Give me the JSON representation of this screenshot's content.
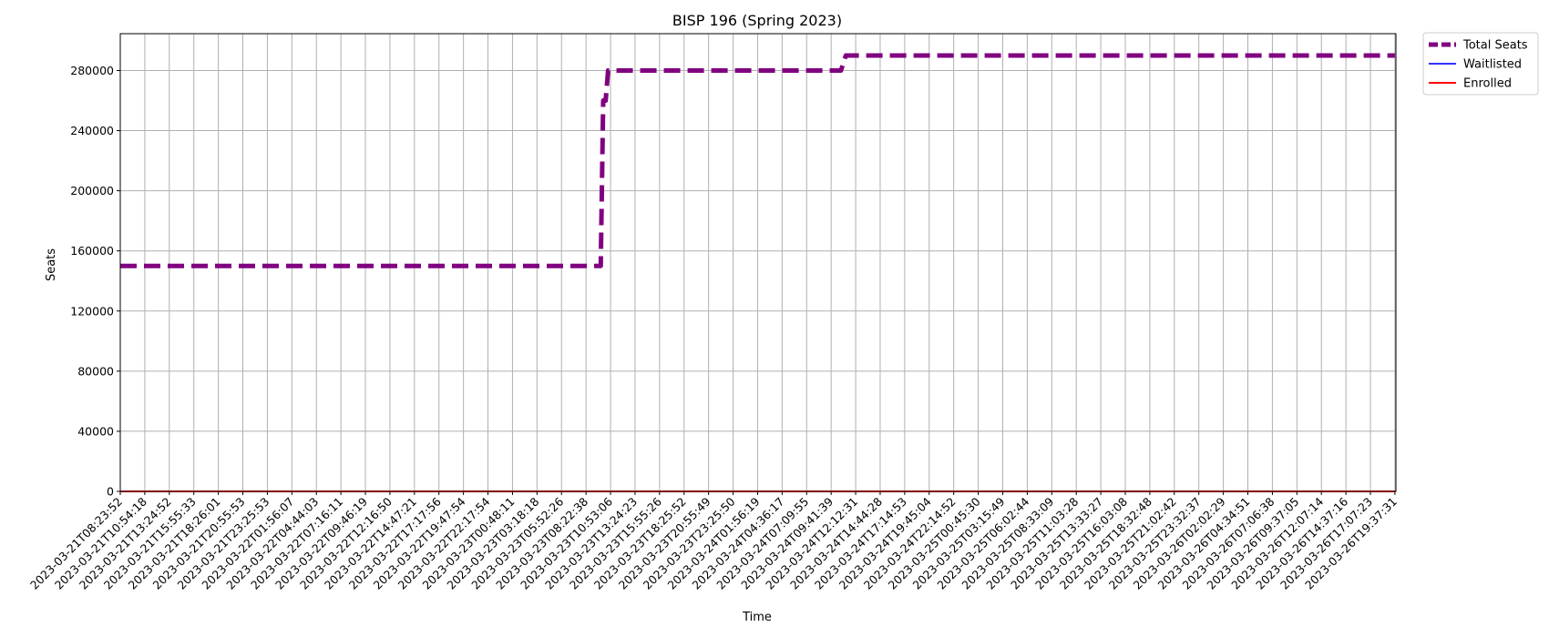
{
  "chart_data": {
    "type": "line",
    "title": "BISP 196 (Spring 2023)",
    "xlabel": "Time",
    "ylabel": "Seats",
    "ylim": [
      0,
      304500
    ],
    "yticks": [
      0,
      40000,
      80000,
      120000,
      160000,
      200000,
      240000,
      280000
    ],
    "grid": true,
    "legend_position": "outside-top-right",
    "x_tick_labels": [
      "2023-03-21T08:23:52",
      "2023-03-21T10:54:18",
      "2023-03-21T13:24:52",
      "2023-03-21T15:55:33",
      "2023-03-21T18:26:01",
      "2023-03-21T20:55:53",
      "2023-03-21T23:25:53",
      "2023-03-22T01:56:07",
      "2023-03-22T04:44:03",
      "2023-03-22T07:16:11",
      "2023-03-22T09:46:19",
      "2023-03-22T12:16:50",
      "2023-03-22T14:47:21",
      "2023-03-22T17:17:56",
      "2023-03-22T19:47:54",
      "2023-03-22T22:17:54",
      "2023-03-23T00:48:11",
      "2023-03-23T03:18:18",
      "2023-03-23T05:52:26",
      "2023-03-23T08:22:38",
      "2023-03-23T10:53:06",
      "2023-03-23T13:24:23",
      "2023-03-23T15:55:26",
      "2023-03-23T18:25:52",
      "2023-03-23T20:55:49",
      "2023-03-23T23:25:50",
      "2023-03-24T01:56:19",
      "2023-03-24T04:36:17",
      "2023-03-24T07:09:55",
      "2023-03-24T09:41:39",
      "2023-03-24T12:12:31",
      "2023-03-24T14:44:28",
      "2023-03-24T17:14:53",
      "2023-03-24T19:45:04",
      "2023-03-24T22:14:52",
      "2023-03-25T00:45:30",
      "2023-03-25T03:15:49",
      "2023-03-25T06:02:44",
      "2023-03-25T08:33:09",
      "2023-03-25T11:03:28",
      "2023-03-25T13:33:27",
      "2023-03-25T16:03:08",
      "2023-03-25T18:32:48",
      "2023-03-25T21:02:42",
      "2023-03-25T23:32:37",
      "2023-03-26T02:02:29",
      "2023-03-26T04:34:51",
      "2023-03-26T07:06:38",
      "2023-03-26T09:37:05",
      "2023-03-26T12:07:14",
      "2023-03-26T14:37:16",
      "2023-03-26T17:07:23",
      "2023-03-26T19:37:31"
    ],
    "series": [
      {
        "name": "Total Seats",
        "color": "#800080",
        "style": "dashed",
        "points": [
          {
            "x": 0,
            "y": 150000
          },
          {
            "x": 19.6,
            "y": 150000
          },
          {
            "x": 19.7,
            "y": 260000
          },
          {
            "x": 19.8,
            "y": 260000
          },
          {
            "x": 19.9,
            "y": 280000
          },
          {
            "x": 29.4,
            "y": 280000
          },
          {
            "x": 29.6,
            "y": 290000
          },
          {
            "x": 52.0,
            "y": 290000
          }
        ]
      },
      {
        "name": "Waitlisted",
        "color": "#3333ff",
        "style": "solid",
        "points": [
          {
            "x": 0,
            "y": 0
          },
          {
            "x": 52.0,
            "y": 0
          }
        ]
      },
      {
        "name": "Enrolled",
        "color": "#ff0000",
        "style": "solid",
        "points": [
          {
            "x": 0,
            "y": 0
          },
          {
            "x": 52.0,
            "y": 0
          }
        ]
      }
    ]
  }
}
